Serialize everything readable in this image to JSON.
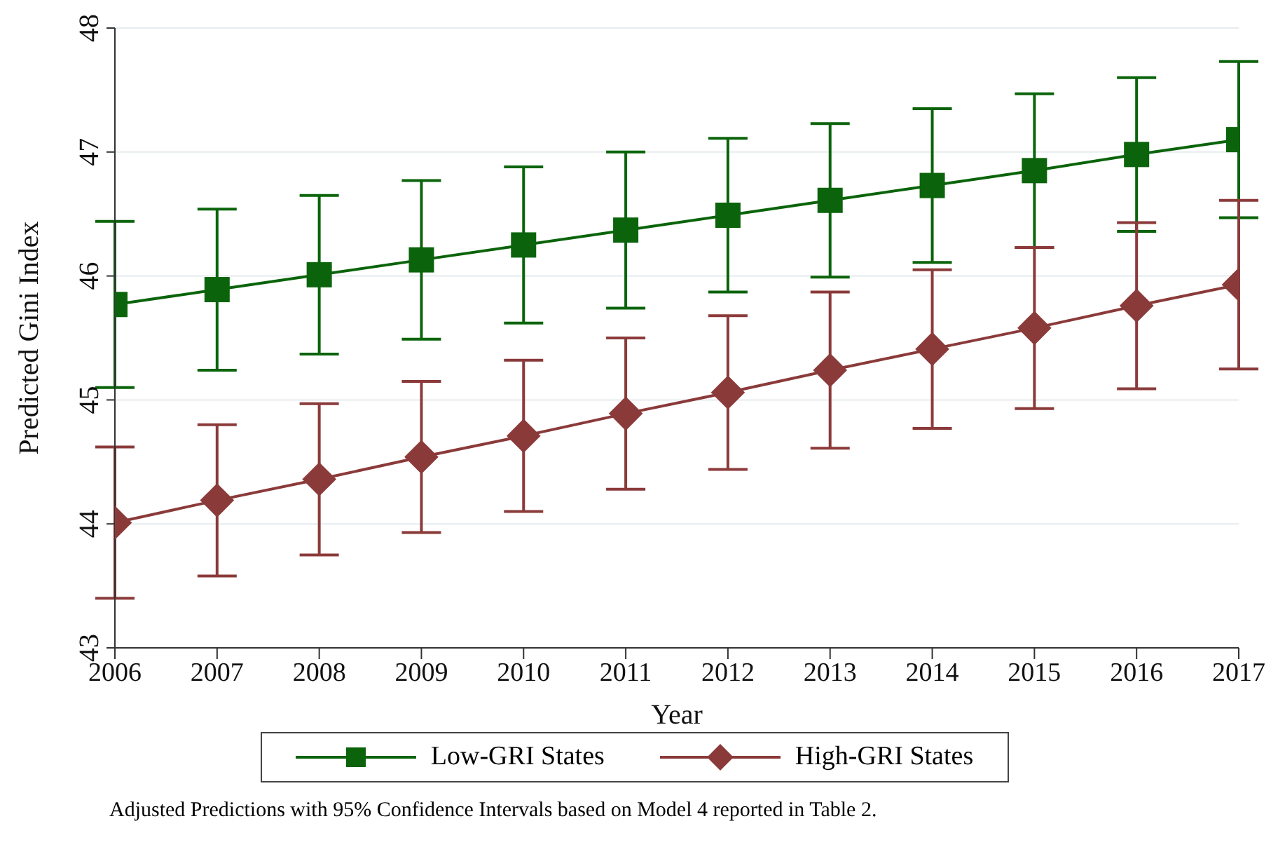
{
  "chart_data": {
    "type": "line",
    "xlabel": "Year",
    "ylabel": "Predicted Gini Index",
    "annotations": [
      "Adjusted Predictions with 95% Confidence Intervals based on Model 4 reported in Table 2."
    ],
    "x": [
      2006,
      2007,
      2008,
      2009,
      2010,
      2011,
      2012,
      2013,
      2014,
      2015,
      2016,
      2017
    ],
    "xlim": [
      2006,
      2017
    ],
    "xticks": [
      2006,
      2007,
      2008,
      2009,
      2010,
      2011,
      2012,
      2013,
      2014,
      2015,
      2016,
      2017
    ],
    "ylim": [
      43,
      48
    ],
    "yticks": [
      43,
      44,
      45,
      46,
      47,
      48
    ],
    "grid": "y",
    "legend": "bottom",
    "line_style": "solid",
    "series": [
      {
        "name": "Low-GRI States",
        "color": "#0b640b",
        "marker": "square",
        "values": [
          45.77,
          45.89,
          46.01,
          46.13,
          46.25,
          46.37,
          46.49,
          46.61,
          46.73,
          46.85,
          46.98,
          47.1
        ],
        "errors": [
          0.67,
          0.65,
          0.64,
          0.64,
          0.63,
          0.63,
          0.62,
          0.62,
          0.62,
          0.62,
          0.62,
          0.63
        ]
      },
      {
        "name": "High-GRI States",
        "color": "#8b3a3a",
        "marker": "diamond",
        "values": [
          44.01,
          44.19,
          44.36,
          44.54,
          44.71,
          44.89,
          45.06,
          45.24,
          45.41,
          45.58,
          45.76,
          45.93
        ],
        "errors": [
          0.61,
          0.61,
          0.61,
          0.61,
          0.61,
          0.61,
          0.62,
          0.63,
          0.64,
          0.65,
          0.67,
          0.68
        ]
      }
    ]
  }
}
